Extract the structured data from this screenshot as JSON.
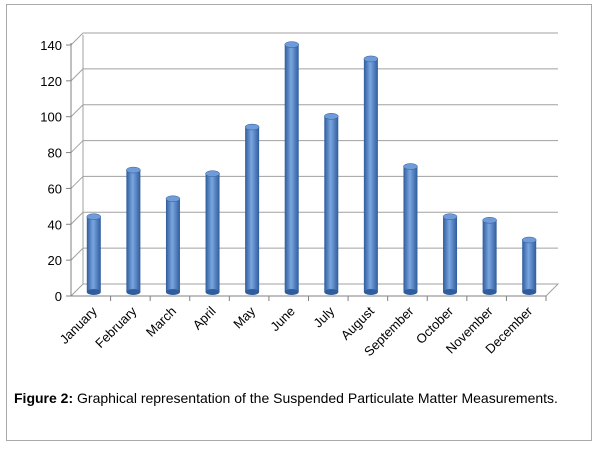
{
  "chart_data": {
    "type": "bar",
    "categories": [
      "January",
      "February",
      "March",
      "April",
      "May",
      "June",
      "July",
      "August",
      "September",
      "October",
      "November",
      "December"
    ],
    "values": [
      42,
      68,
      52,
      66,
      92,
      138,
      98,
      130,
      70,
      42,
      40,
      29
    ],
    "ylim": [
      0,
      140
    ],
    "yticks": [
      0,
      20,
      40,
      60,
      80,
      100,
      120,
      140
    ],
    "grid": true,
    "style": "3d-cylinder",
    "colors": {
      "bar": "#4a7ec8",
      "bar_dark": "#2f5c9c",
      "bar_light": "#7aa6e0",
      "grid": "#a0a0a0"
    }
  },
  "caption": {
    "label": "Figure 2:",
    "text": " Graphical representation of the Suspended Particulate Matter Measurements."
  }
}
